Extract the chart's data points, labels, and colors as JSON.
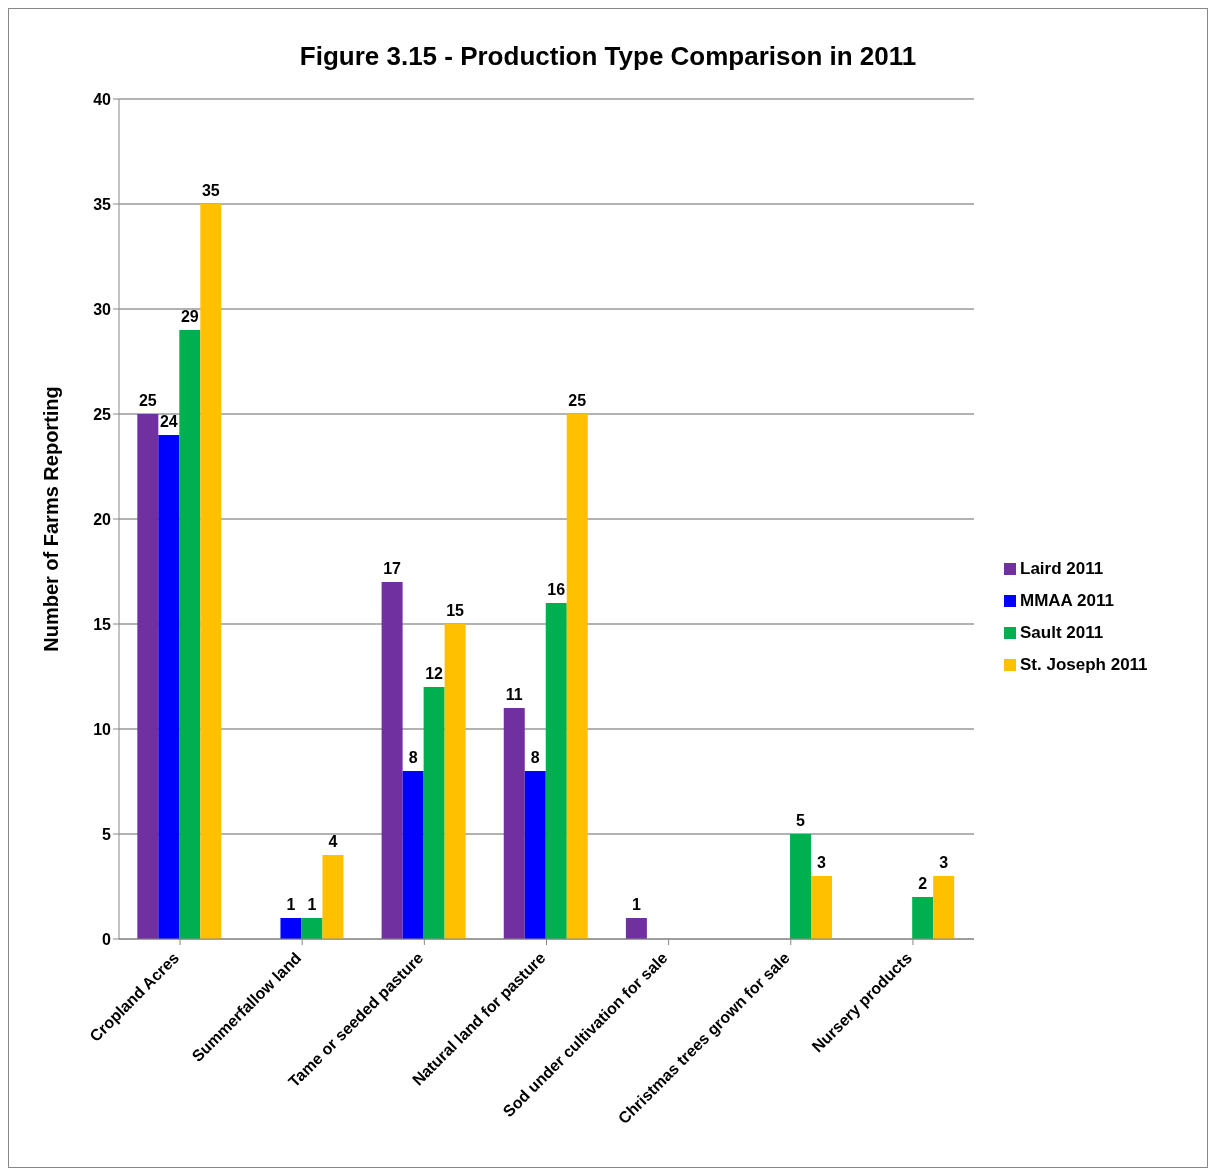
{
  "chart_data": {
    "type": "bar",
    "title": "Figure 3.15 - Production Type Comparison in 2011",
    "ylabel": "Number of Farms Reporting",
    "categories": [
      "Cropland Acres",
      "Summerfallow land",
      "Tame or seeded pasture",
      "Natural land for pasture",
      "Sod under cultivation for sale",
      "Christmas trees grown for sale",
      "Nursery products"
    ],
    "series": [
      {
        "name": "Laird 2011",
        "color": "#7030a0",
        "values": [
          25,
          null,
          17,
          11,
          1,
          null,
          null
        ]
      },
      {
        "name": "MMAA 2011",
        "color": "#0000ff",
        "values": [
          24,
          1,
          8,
          8,
          null,
          null,
          null
        ]
      },
      {
        "name": "Sault 2011",
        "color": "#00b050",
        "values": [
          29,
          1,
          12,
          16,
          null,
          5,
          2
        ]
      },
      {
        "name": "St. Joseph 2011",
        "color": "#ffc000",
        "values": [
          35,
          4,
          15,
          25,
          null,
          3,
          3
        ]
      }
    ],
    "ylim": [
      0,
      40
    ],
    "yticks": [
      0,
      5,
      10,
      15,
      20,
      25,
      30,
      35,
      40
    ],
    "grid": "y",
    "legend": "right",
    "data_labels": true
  }
}
